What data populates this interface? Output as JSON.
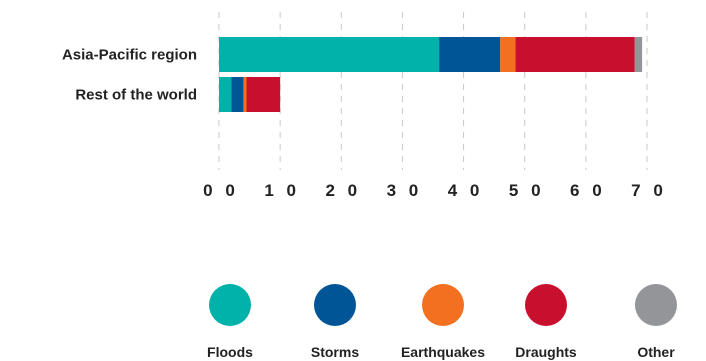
{
  "chart_data": {
    "type": "bar",
    "orientation": "horizontal",
    "stacked": true,
    "categories": [
      "Asia-Pacific region",
      "Rest of the world"
    ],
    "series": [
      {
        "name": "Floods",
        "color": "#00b2a9",
        "values": [
          36,
          2
        ]
      },
      {
        "name": "Storms",
        "color": "#005596",
        "values": [
          10,
          2
        ]
      },
      {
        "name": "Earthquakes",
        "color": "#f37021",
        "values": [
          2.5,
          0.5
        ]
      },
      {
        "name": "Draughts",
        "color": "#c8102e",
        "values": [
          19.5,
          5.5
        ]
      },
      {
        "name": "Other",
        "color": "#939598",
        "values": [
          1.2,
          0
        ]
      }
    ],
    "xlim": [
      0,
      70
    ],
    "xticks": [
      0,
      10,
      20,
      30,
      40,
      50,
      60,
      70
    ],
    "xtick_labels": [
      "0 0",
      "1 0",
      "2 0",
      "3 0",
      "4 0",
      "5 0",
      "6 0",
      "7 0"
    ],
    "grid": "vertical dashed",
    "legend_position": "bottom",
    "title": "",
    "xlabel": "",
    "ylabel": ""
  }
}
